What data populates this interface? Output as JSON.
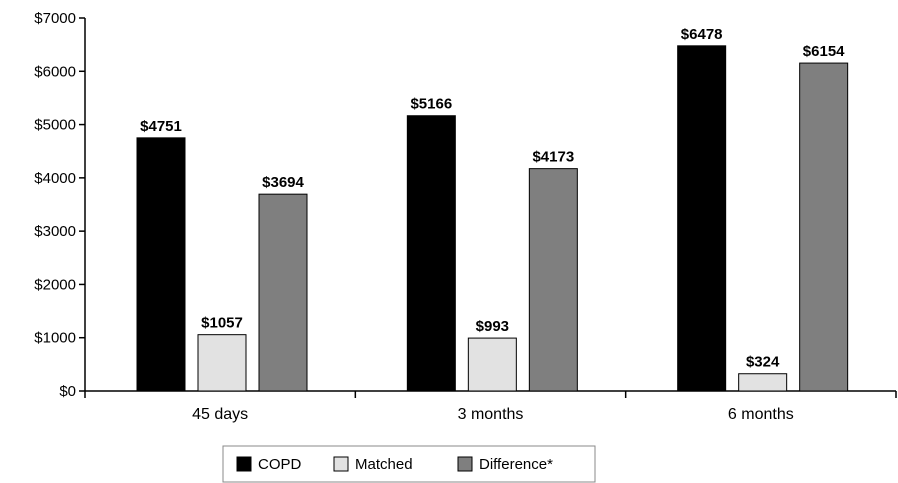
{
  "chart_data": {
    "type": "bar",
    "title": "",
    "xlabel": "",
    "ylabel": "",
    "categories": [
      "45 days",
      "3 months",
      "6 months"
    ],
    "series": [
      {
        "name": "COPD",
        "color": "#000000",
        "values": [
          4751,
          5166,
          6478
        ],
        "labels": [
          "$4751",
          "$5166",
          "$6478"
        ]
      },
      {
        "name": "Matched",
        "color": "#e2e2e2",
        "values": [
          1057,
          993,
          324
        ],
        "labels": [
          "$1057",
          "$993",
          "$324"
        ]
      },
      {
        "name": "Difference*",
        "color": "#7f7f7f",
        "values": [
          3694,
          4173,
          6154
        ],
        "labels": [
          "$3694",
          "$4173",
          "$6154"
        ]
      }
    ],
    "ylim": [
      0,
      7000
    ],
    "yticks": [
      0,
      1000,
      2000,
      3000,
      4000,
      5000,
      6000,
      7000
    ],
    "ytick_labels": [
      "$0",
      "$1000",
      "$2000",
      "$3000",
      "$4000",
      "$5000",
      "$6000",
      "$7000"
    ],
    "grid": false,
    "legend_position": "bottom-center"
  }
}
